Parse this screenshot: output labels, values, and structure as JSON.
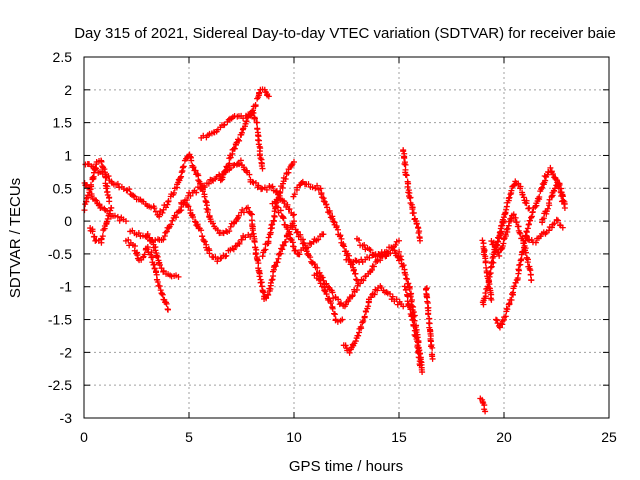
{
  "chart_data": {
    "type": "scatter",
    "title": "Day 315 of 2021, Sidereal Day-to-day VTEC variation (SDTVAR) for receiver baie",
    "xlabel": "GPS time / hours",
    "ylabel": "SDTVAR / TECUs",
    "xlim": [
      0,
      25
    ],
    "ylim": [
      -3,
      2.5
    ],
    "xticks": [
      0,
      5,
      10,
      15,
      20,
      25
    ],
    "yticks": [
      -3,
      -2.5,
      -2,
      -1.5,
      -1,
      -0.5,
      0,
      0.5,
      1,
      1.5,
      2,
      2.5
    ],
    "xtick_labels": [
      "0",
      "5",
      "10",
      "15",
      "20",
      "25"
    ],
    "ytick_labels": [
      "-3",
      "-2.5",
      "-2",
      "-1.5",
      "-1",
      "-0.5",
      "0",
      "0.5",
      "1",
      "1.5",
      "2",
      "2.5"
    ],
    "grid": true,
    "marker": "+",
    "series": [
      {
        "name": "SDTVAR",
        "color": "#ff0000",
        "arcs": [
          [
            [
              0.0,
              0.9
            ],
            [
              0.5,
              0.8
            ],
            [
              1.0,
              0.7
            ],
            [
              1.5,
              0.55
            ],
            [
              2.0,
              0.5
            ],
            [
              2.5,
              0.35
            ],
            [
              3.0,
              0.25
            ],
            [
              3.3,
              0.2
            ],
            [
              3.6,
              0.1
            ]
          ],
          [
            [
              0.0,
              0.6
            ],
            [
              0.4,
              0.4
            ],
            [
              0.8,
              0.2
            ],
            [
              1.2,
              0.1
            ],
            [
              1.6,
              0.05
            ],
            [
              2.0,
              0.0
            ]
          ],
          [
            [
              0.0,
              0.2
            ],
            [
              0.3,
              0.5
            ],
            [
              0.6,
              0.9
            ],
            [
              0.8,
              0.95
            ],
            [
              1.0,
              0.7
            ],
            [
              1.2,
              0.3
            ]
          ],
          [
            [
              0.3,
              -0.1
            ],
            [
              0.6,
              -0.3
            ],
            [
              0.8,
              -0.3
            ],
            [
              1.0,
              -0.1
            ],
            [
              1.3,
              0.2
            ]
          ],
          [
            [
              2.0,
              -0.3
            ],
            [
              2.4,
              -0.4
            ],
            [
              2.6,
              -0.6
            ],
            [
              2.8,
              -0.55
            ],
            [
              3.0,
              -0.4
            ],
            [
              3.2,
              -0.5
            ],
            [
              3.5,
              -0.9
            ],
            [
              3.8,
              -1.2
            ],
            [
              4.0,
              -1.35
            ]
          ],
          [
            [
              3.0,
              -0.2
            ],
            [
              3.4,
              -0.4
            ],
            [
              3.6,
              -0.7
            ],
            [
              3.9,
              -0.8
            ],
            [
              4.1,
              -0.8
            ],
            [
              4.5,
              -0.85
            ]
          ],
          [
            [
              3.6,
              0.1
            ],
            [
              4.0,
              0.3
            ],
            [
              4.4,
              0.5
            ],
            [
              4.6,
              0.7
            ],
            [
              4.8,
              0.9
            ],
            [
              5.0,
              1.0
            ]
          ],
          [
            [
              2.2,
              -0.15
            ],
            [
              2.6,
              -0.2
            ],
            [
              3.0,
              -0.25
            ],
            [
              3.4,
              -0.3
            ],
            [
              3.8,
              -0.25
            ],
            [
              4.2,
              0.0
            ],
            [
              4.6,
              0.2
            ],
            [
              5.0,
              0.4
            ],
            [
              5.5,
              0.5
            ],
            [
              6.0,
              0.6
            ],
            [
              6.5,
              0.7
            ],
            [
              7.0,
              0.8
            ],
            [
              7.5,
              0.9
            ],
            [
              8.0,
              0.6
            ],
            [
              8.5,
              0.5
            ],
            [
              9.0,
              0.5
            ],
            [
              9.5,
              0.3
            ],
            [
              10.0,
              0.1
            ]
          ],
          [
            [
              5.0,
              1.0
            ],
            [
              5.4,
              0.7
            ],
            [
              5.8,
              0.3
            ],
            [
              6.0,
              0.0
            ],
            [
              6.3,
              -0.1
            ],
            [
              6.6,
              -0.2
            ],
            [
              7.0,
              -0.1
            ],
            [
              7.4,
              0.1
            ],
            [
              7.8,
              0.2
            ],
            [
              8.0,
              0.1
            ]
          ],
          [
            [
              5.6,
              1.3
            ],
            [
              6.0,
              1.3
            ],
            [
              6.4,
              1.4
            ],
            [
              6.8,
              1.5
            ],
            [
              7.2,
              1.6
            ],
            [
              7.6,
              1.6
            ],
            [
              7.9,
              1.6
            ],
            [
              8.2,
              1.8
            ],
            [
              8.4,
              2.0
            ],
            [
              8.6,
              2.0
            ],
            [
              8.8,
              1.9
            ]
          ],
          [
            [
              4.6,
              0.3
            ],
            [
              5.0,
              0.2
            ],
            [
              5.3,
              0.0
            ],
            [
              5.6,
              -0.2
            ],
            [
              6.0,
              -0.5
            ],
            [
              6.4,
              -0.6
            ],
            [
              6.8,
              -0.5
            ],
            [
              7.2,
              -0.4
            ],
            [
              7.6,
              -0.25
            ],
            [
              8.0,
              -0.2
            ]
          ],
          [
            [
              6.5,
              0.6
            ],
            [
              6.8,
              0.8
            ],
            [
              7.0,
              1.0
            ],
            [
              7.3,
              1.2
            ],
            [
              7.6,
              1.4
            ],
            [
              8.0,
              1.7
            ],
            [
              8.2,
              1.5
            ],
            [
              8.4,
              1.0
            ],
            [
              8.5,
              0.8
            ]
          ],
          [
            [
              8.0,
              0.0
            ],
            [
              8.2,
              -0.5
            ],
            [
              8.4,
              -0.9
            ],
            [
              8.6,
              -1.2
            ],
            [
              8.8,
              -1.1
            ],
            [
              9.0,
              -0.8
            ],
            [
              9.3,
              -0.5
            ],
            [
              9.6,
              -0.3
            ],
            [
              10.0,
              0.0
            ]
          ],
          [
            [
              8.5,
              -0.5
            ],
            [
              8.8,
              -0.3
            ],
            [
              9.0,
              0.0
            ],
            [
              9.2,
              0.3
            ],
            [
              9.5,
              0.6
            ],
            [
              9.8,
              0.8
            ],
            [
              10.0,
              0.9
            ]
          ],
          [
            [
              9.0,
              0.3
            ],
            [
              9.4,
              0.1
            ],
            [
              9.8,
              -0.2
            ],
            [
              10.0,
              -0.4
            ],
            [
              10.2,
              -0.5
            ],
            [
              10.6,
              -0.4
            ],
            [
              11.0,
              -0.3
            ],
            [
              11.4,
              -0.2
            ]
          ],
          [
            [
              10.0,
              0.4
            ],
            [
              10.4,
              0.6
            ],
            [
              10.8,
              0.55
            ],
            [
              11.2,
              0.5
            ],
            [
              11.6,
              0.2
            ],
            [
              12.0,
              -0.1
            ],
            [
              12.4,
              -0.4
            ],
            [
              12.8,
              -0.7
            ],
            [
              13.0,
              -0.9
            ]
          ],
          [
            [
              10.0,
              -0.1
            ],
            [
              10.4,
              -0.3
            ],
            [
              10.8,
              -0.6
            ],
            [
              11.2,
              -0.8
            ],
            [
              11.6,
              -1.0
            ],
            [
              12.0,
              -1.2
            ],
            [
              12.4,
              -1.3
            ],
            [
              12.8,
              -1.1
            ],
            [
              13.2,
              -0.9
            ],
            [
              13.6,
              -0.8
            ],
            [
              14.0,
              -0.6
            ],
            [
              14.5,
              -0.5
            ]
          ],
          [
            [
              11.0,
              -0.8
            ],
            [
              11.4,
              -1.0
            ],
            [
              11.8,
              -1.3
            ],
            [
              12.0,
              -1.5
            ],
            [
              12.3,
              -1.5
            ]
          ],
          [
            [
              12.4,
              -1.9
            ],
            [
              12.6,
              -2.0
            ],
            [
              12.8,
              -1.9
            ],
            [
              13.0,
              -1.8
            ],
            [
              13.3,
              -1.5
            ],
            [
              13.6,
              -1.2
            ],
            [
              14.0,
              -1.0
            ],
            [
              14.4,
              -1.1
            ],
            [
              14.8,
              -1.2
            ],
            [
              15.2,
              -1.3
            ]
          ],
          [
            [
              12.5,
              -0.6
            ],
            [
              12.9,
              -0.6
            ],
            [
              13.3,
              -0.6
            ],
            [
              13.7,
              -0.55
            ],
            [
              14.1,
              -0.5
            ],
            [
              14.5,
              -0.5
            ],
            [
              14.8,
              -0.45
            ],
            [
              15.0,
              -0.6
            ]
          ],
          [
            [
              13.0,
              -0.3
            ],
            [
              13.4,
              -0.4
            ],
            [
              13.8,
              -0.5
            ],
            [
              14.2,
              -0.5
            ],
            [
              14.6,
              -0.4
            ],
            [
              15.0,
              -0.3
            ]
          ],
          [
            [
              15.2,
              1.1
            ],
            [
              15.3,
              0.8
            ],
            [
              15.5,
              0.4
            ],
            [
              15.7,
              0.1
            ],
            [
              15.9,
              -0.1
            ],
            [
              16.0,
              -0.3
            ]
          ],
          [
            [
              15.0,
              -0.5
            ],
            [
              15.2,
              -0.7
            ],
            [
              15.4,
              -0.9
            ],
            [
              15.6,
              -1.2
            ],
            [
              15.8,
              -1.6
            ],
            [
              16.0,
              -2.0
            ],
            [
              16.1,
              -2.3
            ]
          ],
          [
            [
              15.3,
              -1.0
            ],
            [
              15.5,
              -1.3
            ],
            [
              15.7,
              -1.6
            ],
            [
              15.9,
              -1.9
            ],
            [
              16.0,
              -2.2
            ]
          ],
          [
            [
              16.3,
              -1.0
            ],
            [
              16.4,
              -1.4
            ],
            [
              16.5,
              -1.8
            ],
            [
              16.6,
              -2.1
            ]
          ],
          [
            [
              18.9,
              -2.7
            ],
            [
              19.0,
              -2.8
            ],
            [
              19.1,
              -2.9
            ]
          ],
          [
            [
              19.0,
              -0.3
            ],
            [
              19.1,
              -0.6
            ],
            [
              19.2,
              -0.8
            ],
            [
              19.3,
              -1.0
            ],
            [
              19.4,
              -1.2
            ]
          ],
          [
            [
              19.0,
              -1.3
            ],
            [
              19.2,
              -1.0
            ],
            [
              19.4,
              -0.7
            ],
            [
              19.6,
              -0.4
            ],
            [
              19.8,
              -0.2
            ],
            [
              20.0,
              0.0
            ]
          ],
          [
            [
              19.4,
              -0.3
            ],
            [
              19.8,
              -0.5
            ],
            [
              20.0,
              -0.3
            ],
            [
              20.2,
              -0.1
            ],
            [
              20.4,
              0.1
            ],
            [
              20.6,
              0.0
            ],
            [
              20.8,
              -0.2
            ],
            [
              21.0,
              -0.4
            ],
            [
              21.2,
              -0.7
            ],
            [
              21.3,
              -0.9
            ]
          ],
          [
            [
              19.6,
              -1.5
            ],
            [
              19.8,
              -1.6
            ],
            [
              20.0,
              -1.5
            ],
            [
              20.2,
              -1.3
            ],
            [
              20.4,
              -1.1
            ],
            [
              20.6,
              -0.9
            ],
            [
              20.8,
              -0.6
            ],
            [
              21.0,
              -0.3
            ],
            [
              21.2,
              0.0
            ],
            [
              21.4,
              0.2
            ]
          ],
          [
            [
              19.5,
              -0.5
            ],
            [
              19.8,
              -0.2
            ],
            [
              20.0,
              0.1
            ],
            [
              20.2,
              0.3
            ],
            [
              20.4,
              0.5
            ],
            [
              20.6,
              0.6
            ],
            [
              20.8,
              0.5
            ],
            [
              21.0,
              0.3
            ],
            [
              21.2,
              0.2
            ]
          ],
          [
            [
              21.0,
              -0.2
            ],
            [
              21.3,
              -0.3
            ],
            [
              21.6,
              -0.3
            ],
            [
              21.9,
              -0.2
            ],
            [
              22.2,
              -0.1
            ],
            [
              22.5,
              0.0
            ],
            [
              22.8,
              -0.1
            ]
          ],
          [
            [
              21.5,
              0.2
            ],
            [
              21.8,
              0.5
            ],
            [
              22.0,
              0.7
            ],
            [
              22.2,
              0.8
            ],
            [
              22.4,
              0.7
            ],
            [
              22.6,
              0.5
            ],
            [
              22.8,
              0.3
            ]
          ],
          [
            [
              21.8,
              0.0
            ],
            [
              22.1,
              0.2
            ],
            [
              22.4,
              0.5
            ],
            [
              22.6,
              0.6
            ],
            [
              22.8,
              0.4
            ],
            [
              22.9,
              0.2
            ]
          ]
        ]
      }
    ]
  }
}
